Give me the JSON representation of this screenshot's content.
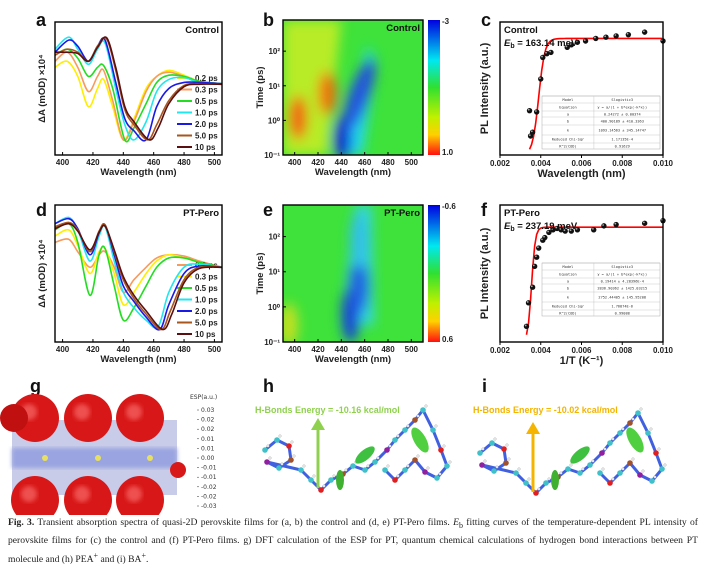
{
  "chart_data": [
    {
      "panel": "a",
      "type": "line",
      "tag": "Control",
      "xlabel": "Wavelength (nm)",
      "ylabel": "ΔA (mOD) ×10⁴",
      "xlim": [
        395,
        505
      ],
      "ylim": [
        -1.1,
        1.1
      ],
      "xticks": [
        400,
        420,
        440,
        460,
        480,
        500
      ],
      "legend_placement": "bottom-right",
      "series": [
        {
          "name": "0.2 ps",
          "color": "#ffee00",
          "x": [
            395,
            403,
            410,
            417,
            423,
            427,
            433,
            440,
            447,
            455,
            462,
            470,
            480,
            490,
            505
          ],
          "y": [
            0.35,
            0.45,
            0.2,
            -0.3,
            0.0,
            0.15,
            -0.3,
            -0.85,
            -0.5,
            0.0,
            0.2,
            0.3,
            0.22,
            0.12,
            0.08
          ]
        },
        {
          "name": "0.3 ps",
          "color": "#f79a5c",
          "x": [
            395,
            403,
            410,
            417,
            423,
            427,
            433,
            440,
            447,
            455,
            462,
            470,
            480,
            490,
            505
          ],
          "y": [
            0.45,
            0.6,
            0.35,
            -0.05,
            0.2,
            0.3,
            -0.2,
            -0.85,
            -0.55,
            -0.05,
            0.2,
            0.27,
            0.2,
            0.12,
            0.08
          ]
        },
        {
          "name": "0.5 ps",
          "color": "#22dd22",
          "x": [
            395,
            403,
            410,
            417,
            423,
            427,
            433,
            441,
            447,
            455,
            462,
            470,
            480,
            490,
            505
          ],
          "y": [
            0.55,
            0.65,
            0.5,
            0.2,
            0.35,
            0.38,
            0.0,
            -0.85,
            -0.65,
            -0.25,
            0.1,
            0.22,
            0.2,
            0.12,
            0.08
          ]
        },
        {
          "name": "1.0 ps",
          "color": "#22e6ee",
          "x": [
            395,
            404,
            410,
            417,
            423,
            428,
            435,
            441,
            447,
            455,
            462,
            470,
            480,
            490,
            505
          ],
          "y": [
            0.65,
            0.85,
            0.65,
            0.4,
            0.65,
            0.75,
            0.0,
            -0.6,
            -0.85,
            -0.55,
            -0.05,
            0.15,
            0.18,
            0.1,
            0.08
          ]
        },
        {
          "name": "2.0 ps",
          "color": "#1a1ae6",
          "x": [
            395,
            404,
            410,
            417,
            423,
            428,
            435,
            441,
            447,
            455,
            462,
            470,
            480,
            490,
            505
          ],
          "y": [
            0.6,
            0.8,
            0.7,
            0.45,
            0.7,
            0.8,
            0.1,
            -0.5,
            -0.7,
            -0.85,
            -0.3,
            0.0,
            0.1,
            0.1,
            0.08
          ]
        },
        {
          "name": "5.0 ps",
          "color": "#a8551e",
          "x": [
            395,
            403,
            410,
            417,
            423,
            429,
            435,
            441,
            447,
            456,
            462,
            470,
            480,
            490,
            505
          ],
          "y": [
            0.55,
            0.65,
            0.6,
            0.45,
            0.7,
            0.82,
            0.3,
            -0.35,
            -0.6,
            -0.85,
            -0.6,
            -0.2,
            0.05,
            0.08,
            0.07
          ]
        },
        {
          "name": "10  ps",
          "color": "#5a1010",
          "x": [
            395,
            403,
            410,
            417,
            423,
            429,
            435,
            441,
            447,
            457,
            463,
            470,
            480,
            490,
            505
          ],
          "y": [
            0.6,
            0.6,
            0.58,
            0.45,
            0.68,
            0.84,
            0.35,
            -0.3,
            -0.55,
            -0.85,
            -0.65,
            -0.25,
            0.03,
            0.07,
            0.07
          ]
        }
      ]
    },
    {
      "panel": "b",
      "type": "heatmap",
      "tag": "Control",
      "xlabel": "Wavelength (nm)",
      "ylabel": "Time (ps)",
      "xlim": [
        390,
        510
      ],
      "xticks": [
        400,
        420,
        440,
        460,
        480,
        500
      ],
      "yscale": "log",
      "yticks": [
        "10⁻¹",
        "10⁰",
        "10¹",
        "10²"
      ],
      "colorbar": {
        "max_label": "-3",
        "min_label": "1.0"
      },
      "features": [
        {
          "wavelength_nm": 403,
          "time_ps": 1.2,
          "color": "#f06010"
        },
        {
          "wavelength_nm": 428,
          "time_ps": 6,
          "color": "#f07010"
        },
        {
          "wavelength_nm": 441,
          "time_ps": 0.3,
          "color": "#1020d0"
        },
        {
          "wavelength_nm": 455,
          "time_ps": 5,
          "color": "#2050e0"
        }
      ]
    },
    {
      "panel": "c",
      "type": "scatter",
      "tag": "Control",
      "eb_label": "E",
      "eb_sub": "b",
      "eb_value": " = 163.14 meV",
      "xlabel": "Wavelength (nm)",
      "ylabel": "PL Intensity (a.u.)",
      "xlim": [
        0.002,
        0.01
      ],
      "ylim": [
        0,
        1.05
      ],
      "xticks": [
        "0.002",
        "0.004",
        "0.006",
        "0.008",
        "0.010"
      ],
      "points": [
        [
          0.00345,
          0.35
        ],
        [
          0.0035,
          0.15
        ],
        [
          0.0036,
          0.18
        ],
        [
          0.0038,
          0.34
        ],
        [
          0.004,
          0.6
        ],
        [
          0.0041,
          0.77
        ],
        [
          0.0043,
          0.8
        ],
        [
          0.0045,
          0.81
        ],
        [
          0.0053,
          0.85
        ],
        [
          0.0055,
          0.87
        ],
        [
          0.0058,
          0.89
        ],
        [
          0.0062,
          0.9
        ],
        [
          0.0067,
          0.92
        ],
        [
          0.0072,
          0.93
        ],
        [
          0.0077,
          0.94
        ],
        [
          0.0083,
          0.95
        ],
        [
          0.0091,
          0.97
        ],
        [
          0.01,
          0.9
        ]
      ],
      "fit": {
        "plateau": 0.92,
        "k": 2200,
        "x0": 0.0039,
        "color": "#ff0000"
      },
      "table": [
        [
          "Model",
          "Slogistic3"
        ],
        [
          "Equation",
          "y = a/(1 + b*exp(-k*x))"
        ],
        [
          "a",
          "0.24272 ± 0.00374"
        ],
        [
          "b",
          "400.90189 ± 410.3363"
        ],
        [
          "k",
          "1093.14563 ± 345.14747"
        ],
        [
          "Reduced Chi-Sqr",
          "1.17135E-4"
        ],
        [
          "R^2(COD)",
          "0.91629"
        ]
      ]
    },
    {
      "panel": "d",
      "type": "line",
      "tag": "PT-Pero",
      "xlabel": "Wavelength (nm)",
      "ylabel": "ΔA (mOD) ×10⁴",
      "xlim": [
        395,
        505
      ],
      "ylim": [
        -1.1,
        1.1
      ],
      "xticks": [
        400,
        420,
        440,
        460,
        480,
        500
      ],
      "legend_placement": "bottom-right",
      "series": [
        {
          "name": "0.2 ps",
          "color": "#f79a5c",
          "x": [
            395,
            404,
            410,
            418,
            424,
            428,
            434,
            440,
            447,
            455,
            462,
            470,
            480,
            490,
            505
          ],
          "y": [
            0.5,
            0.55,
            0.35,
            0.1,
            0.3,
            0.35,
            0.1,
            -0.3,
            -0.1,
            0.1,
            0.25,
            0.3,
            0.28,
            0.2,
            0.1
          ]
        },
        {
          "name": "0.3 ps",
          "color": "#ffee00",
          "x": [
            395,
            404,
            410,
            418,
            424,
            428,
            434,
            440,
            447,
            455,
            462,
            470,
            480,
            490,
            505
          ],
          "y": [
            0.6,
            0.7,
            0.45,
            0.0,
            0.35,
            0.4,
            0.0,
            -0.5,
            -0.3,
            0.0,
            0.2,
            0.3,
            0.25,
            0.18,
            0.1
          ]
        },
        {
          "name": "0.5 ps",
          "color": "#22dd22",
          "x": [
            395,
            404,
            410,
            418,
            424,
            428,
            434,
            440,
            447,
            455,
            462,
            470,
            480,
            490,
            505
          ],
          "y": [
            0.7,
            0.8,
            0.5,
            -0.35,
            0.3,
            0.4,
            -0.2,
            -0.75,
            -0.55,
            -0.2,
            0.1,
            0.25,
            0.25,
            0.18,
            0.1
          ]
        },
        {
          "name": "1.0 ps",
          "color": "#22e6ee",
          "x": [
            395,
            404,
            410,
            418,
            424,
            428,
            434,
            440,
            447,
            455,
            463,
            470,
            480,
            490,
            505
          ],
          "y": [
            0.8,
            0.9,
            0.7,
            0.2,
            0.6,
            0.75,
            0.2,
            -0.3,
            -0.55,
            -0.75,
            -0.85,
            -0.3,
            0.1,
            0.15,
            0.1
          ]
        },
        {
          "name": "2.0 ps",
          "color": "#1a1ae6",
          "x": [
            395,
            404,
            410,
            418,
            424,
            428,
            434,
            440,
            447,
            455,
            464,
            470,
            480,
            490,
            505
          ],
          "y": [
            0.8,
            0.88,
            0.72,
            0.3,
            0.65,
            0.78,
            0.3,
            -0.2,
            -0.45,
            -0.7,
            -0.9,
            -0.5,
            0.0,
            0.12,
            0.1
          ]
        },
        {
          "name": "5.0 ps",
          "color": "#a8551e",
          "x": [
            395,
            404,
            410,
            418,
            424,
            428,
            434,
            440,
            447,
            455,
            465,
            471,
            480,
            490,
            505
          ],
          "y": [
            0.75,
            0.82,
            0.7,
            0.35,
            0.68,
            0.78,
            0.35,
            -0.1,
            -0.4,
            -0.65,
            -0.9,
            -0.6,
            -0.1,
            0.1,
            0.1
          ]
        },
        {
          "name": "10  ps",
          "color": "#5a1010",
          "x": [
            395,
            404,
            410,
            418,
            424,
            428,
            434,
            440,
            447,
            455,
            466,
            472,
            480,
            490,
            505
          ],
          "y": [
            0.72,
            0.8,
            0.68,
            0.38,
            0.66,
            0.76,
            0.38,
            -0.05,
            -0.35,
            -0.6,
            -0.9,
            -0.65,
            -0.15,
            0.08,
            0.1
          ]
        }
      ]
    },
    {
      "panel": "e",
      "type": "heatmap",
      "tag": "PT-Pero",
      "xlabel": "Wavelength (nm)",
      "ylabel": "Time (ps)",
      "xlim": [
        390,
        510
      ],
      "xticks": [
        400,
        420,
        440,
        460,
        480,
        500
      ],
      "yscale": "log",
      "yticks": [
        "10⁻¹",
        "10⁰",
        "10¹",
        "10²"
      ],
      "colorbar": {
        "max_label": "-0.6",
        "min_label": "0.6"
      },
      "features": [
        {
          "wavelength_nm": 395,
          "time_ps": 0.3,
          "color": "#c8e020"
        },
        {
          "wavelength_nm": 448,
          "time_ps": 0.6,
          "color": "#1840d8"
        },
        {
          "wavelength_nm": 455,
          "time_ps": 4,
          "color": "#2060e0"
        },
        {
          "wavelength_nm": 455,
          "time_ps": 80,
          "color": "#30c0e8"
        }
      ]
    },
    {
      "panel": "f",
      "type": "scatter",
      "tag": "PT-Pero",
      "eb_label": "E",
      "eb_sub": "b",
      "eb_value": " = 237.19 meV",
      "xlabel": "1/T (K⁻¹)",
      "ylabel": "PL Intensity (a.u.)",
      "xlim": [
        0.002,
        0.01
      ],
      "ylim": [
        0,
        1.05
      ],
      "xticks": [
        "0.002",
        "0.004",
        "0.006",
        "0.008",
        "0.010"
      ],
      "points": [
        [
          0.0033,
          0.12
        ],
        [
          0.0034,
          0.3
        ],
        [
          0.0036,
          0.42
        ],
        [
          0.0037,
          0.58
        ],
        [
          0.0038,
          0.65
        ],
        [
          0.0039,
          0.72
        ],
        [
          0.0041,
          0.78
        ],
        [
          0.0042,
          0.8
        ],
        [
          0.0044,
          0.84
        ],
        [
          0.0046,
          0.86
        ],
        [
          0.0048,
          0.87
        ],
        [
          0.005,
          0.86
        ],
        [
          0.0052,
          0.85
        ],
        [
          0.0055,
          0.85
        ],
        [
          0.0058,
          0.86
        ],
        [
          0.0066,
          0.86
        ],
        [
          0.0071,
          0.89
        ],
        [
          0.0077,
          0.9
        ],
        [
          0.0091,
          0.91
        ],
        [
          0.01,
          0.93
        ]
      ],
      "fit": {
        "plateau": 0.88,
        "k": 3600,
        "x0": 0.00355,
        "color": "#ff0000"
      },
      "table": [
        [
          "Model",
          "Slogistic3"
        ],
        [
          "Equation",
          "y = a/(1 + b*exp(-k*x))"
        ],
        [
          "a",
          "0.19414 ± 4.28396E-4"
        ],
        [
          "b",
          "2836.90362 ± 1425.03215"
        ],
        [
          "k",
          "2752.44405 ± 145.95208"
        ],
        [
          "Reduced Chi-Sqr",
          "1.76874E-6"
        ],
        [
          "R^2(COD)",
          "0.99088"
        ]
      ]
    }
  ],
  "panels": {
    "a": "a",
    "b": "b",
    "c": "c",
    "d": "d",
    "e": "e",
    "f": "f",
    "g": "g",
    "h": "h",
    "i": "i"
  },
  "esp": {
    "title": "ESP(a.u.)",
    "ticks": [
      "0.03",
      "0.02",
      "0.02",
      "0.01",
      "0.01",
      "0.00",
      "-0.01",
      "-0.01",
      "-0.02",
      "-0.02",
      "-0.03"
    ]
  },
  "h": {
    "energy_label": "H-Bonds Energy = -10.16 kcal/mol",
    "color": "#8fd14f"
  },
  "i": {
    "energy_label": "H-Bonds Energy = -10.02 kcal/mol",
    "color": "#f5b400"
  },
  "caption": {
    "fig": "Fig. 3.",
    "text1": " Transient absorption spectra of quasi-2D perovskite films for (a, b) the control and (d, e) PT-Pero films. ",
    "eb": "E",
    "eb_sub": "b",
    "text2": " fitting curves of the temperature-dependent PL intensity of perovskite films for (c) the control and (f) PT-Pero films. g) DFT calculation of the ESP for PT, quantum chemical calculations of hydrogen bond interactions between PT molecule and (h) PEA",
    "sup1": "+",
    "text3": " and (i) BA",
    "sup2": "+",
    "text4": "."
  }
}
